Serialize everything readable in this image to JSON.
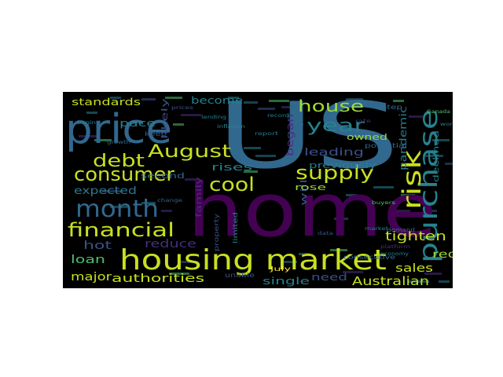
{
  "palette": {
    "yellow_green": "#c8e020",
    "light_green": "#a0da39",
    "green": "#4ac16d",
    "teal": "#26828e",
    "blue": "#2a788e",
    "steel_blue": "#31688e",
    "indigo": "#3b528b",
    "purple": "#472f7d",
    "dark_purple": "#440154",
    "gold": "#fde725",
    "background": "#000000"
  },
  "words": [
    {
      "text": "home",
      "color": "dark_purple",
      "weight": 100
    },
    {
      "text": "US",
      "color": "steel_blue",
      "weight": 98
    },
    {
      "text": "price",
      "color": "steel_blue",
      "weight": 60
    },
    {
      "text": "housing market",
      "color": "yellow_green",
      "weight": 45
    },
    {
      "text": "purchase",
      "color": "teal",
      "weight": 40
    },
    {
      "text": "month",
      "color": "steel_blue",
      "weight": 36
    },
    {
      "text": "risk",
      "color": "yellow_green",
      "weight": 36
    },
    {
      "text": "consumer",
      "color": "yellow_green",
      "weight": 30
    },
    {
      "text": "financial",
      "color": "yellow_green",
      "weight": 30
    },
    {
      "text": "supply",
      "color": "yellow_green",
      "weight": 28
    },
    {
      "text": "cool",
      "color": "yellow_green",
      "weight": 28
    },
    {
      "text": "debt",
      "color": "yellow_green",
      "weight": 26
    },
    {
      "text": "August",
      "color": "yellow_green",
      "weight": 26
    },
    {
      "text": "year",
      "color": "teal",
      "weight": 26
    },
    {
      "text": "house",
      "color": "light_green",
      "weight": 24
    },
    {
      "text": "tighten",
      "color": "yellow_green",
      "weight": 18
    },
    {
      "text": "sales",
      "color": "yellow_green",
      "weight": 16
    },
    {
      "text": "Australian",
      "color": "yellow_green",
      "weight": 16
    },
    {
      "text": "authorities",
      "color": "yellow_green",
      "weight": 15
    },
    {
      "text": "major",
      "color": "yellow_green",
      "weight": 15
    },
    {
      "text": "loan",
      "color": "green",
      "weight": 15
    },
    {
      "text": "hot",
      "color": "indigo",
      "weight": 15
    },
    {
      "text": "reduce",
      "color": "purple",
      "weight": 15
    },
    {
      "text": "expected",
      "color": "blue",
      "weight": 14
    },
    {
      "text": "red",
      "color": "light_green",
      "weight": 14
    },
    {
      "text": "leading",
      "color": "indigo",
      "weight": 14
    },
    {
      "text": "standards",
      "color": "yellow_green",
      "weight": 13
    },
    {
      "text": "become",
      "color": "teal",
      "weight": 13
    },
    {
      "text": "pace",
      "color": "teal",
      "weight": 12
    },
    {
      "text": "began",
      "color": "purple",
      "weight": 12
    },
    {
      "text": "pandemic",
      "color": "blue",
      "weight": 12
    },
    {
      "text": "previously",
      "color": "teal",
      "weight": 12
    },
    {
      "text": "owned",
      "color": "light_green",
      "weight": 12
    },
    {
      "text": "will",
      "color": "indigo",
      "weight": 12
    },
    {
      "text": "rose",
      "color": "light_green",
      "weight": 12
    },
    {
      "text": "need",
      "color": "indigo",
      "weight": 12
    },
    {
      "text": "single",
      "color": "teal",
      "weight": 12
    },
    {
      "text": "rises",
      "color": "teal",
      "weight": 12
    },
    {
      "text": "declined",
      "color": "teal",
      "weight": 11
    },
    {
      "text": "likely",
      "color": "indigo",
      "weight": 11
    },
    {
      "text": "family",
      "color": "purple",
      "weight": 11
    },
    {
      "text": "second",
      "color": "steel_blue",
      "weight": 10
    },
    {
      "text": "potential",
      "color": "steel_blue",
      "weight": 9
    },
    {
      "text": "consecutive",
      "color": "steel_blue",
      "weight": 8
    },
    {
      "text": "property",
      "color": "indigo",
      "weight": 8
    },
    {
      "text": "limited",
      "color": "teal",
      "weight": 8
    },
    {
      "text": "July",
      "color": "gold",
      "weight": 8
    },
    {
      "text": "unable",
      "color": "indigo",
      "weight": 8
    },
    {
      "text": "demand",
      "color": "steel_blue",
      "weight": 7
    },
    {
      "text": "step",
      "color": "steel_blue",
      "weight": 7
    },
    {
      "text": "keep",
      "color": "indigo",
      "weight": 7
    },
    {
      "text": "inflation",
      "color": "teal",
      "weight": 6
    },
    {
      "text": "lending",
      "color": "teal",
      "weight": 6
    },
    {
      "text": "buyers",
      "color": "green",
      "weight": 6
    },
    {
      "text": "market",
      "color": "blue",
      "weight": 6
    },
    {
      "text": "begin",
      "color": "teal",
      "weight": 6
    },
    {
      "text": "world",
      "color": "teal",
      "weight": 6
    },
    {
      "text": "Canada",
      "color": "green",
      "weight": 6
    },
    {
      "text": "prices",
      "color": "indigo",
      "weight": 6
    },
    {
      "text": "growth",
      "color": "steel_blue",
      "weight": 6
    },
    {
      "text": "rate",
      "color": "purple",
      "weight": 6
    },
    {
      "text": "report",
      "color": "blue",
      "weight": 6
    },
    {
      "text": "economy",
      "color": "teal",
      "weight": 6
    },
    {
      "text": "data",
      "color": "indigo",
      "weight": 6
    },
    {
      "text": "change",
      "color": "steel_blue",
      "weight": 6
    },
    {
      "text": "platform",
      "color": "purple",
      "weight": 6
    },
    {
      "text": "record",
      "color": "teal",
      "weight": 6
    }
  ]
}
